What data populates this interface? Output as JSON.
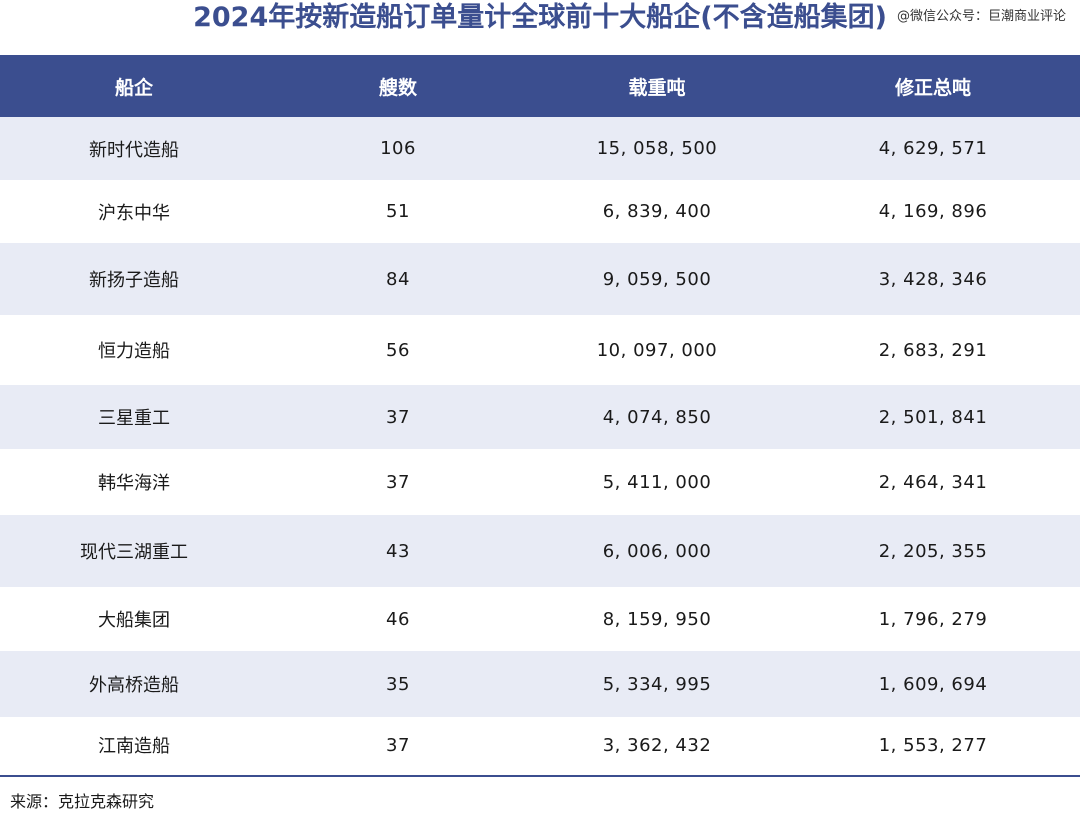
{
  "title": "2024年按新造船订单量计全球前十大船企(不含造船集团)",
  "watermark": "@微信公众号：巨潮商业评论",
  "source": "来源：克拉克森研究",
  "colors": {
    "header_bg": "#3b4e8f",
    "header_text": "#ffffff",
    "band": "#e8ebf5",
    "title": "#3b4e8f"
  },
  "chart_data": {
    "type": "table",
    "title": "2024年按新造船订单量计全球前十大船企(不含造船集团)",
    "columns": [
      "船企",
      "艘数",
      "载重吨",
      "修正总吨"
    ],
    "rows": [
      [
        "新时代造船",
        "106",
        "15, 058, 500",
        "4, 629, 571"
      ],
      [
        "沪东中华",
        "51",
        "6, 839, 400",
        "4, 169, 896"
      ],
      [
        "新扬子造船",
        "84",
        "9, 059, 500",
        "3, 428, 346"
      ],
      [
        "恒力造船",
        "56",
        "10, 097, 000",
        "2, 683, 291"
      ],
      [
        "三星重工",
        "37",
        "4, 074, 850",
        "2, 501, 841"
      ],
      [
        "韩华海洋",
        "37",
        "5, 411, 000",
        "2, 464, 341"
      ],
      [
        "现代三湖重工",
        "43",
        "6, 006, 000",
        "2, 205, 355"
      ],
      [
        "大船集团",
        "46",
        "8, 159, 950",
        "1, 796, 279"
      ],
      [
        "外高桥造船",
        "35",
        "5, 334, 995",
        "1, 609, 694"
      ],
      [
        "江南造船",
        "37",
        "3, 362, 432",
        "1, 553, 277"
      ]
    ]
  }
}
